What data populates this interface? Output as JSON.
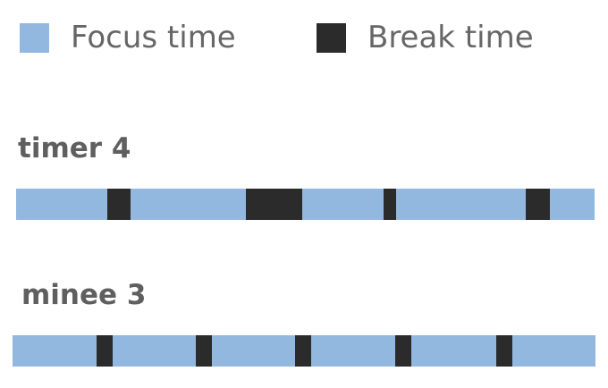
{
  "colors": {
    "focus": "#93b8e0",
    "break": "#2b2b2b"
  },
  "legend": {
    "focus_label": "Focus time",
    "break_label": "Break time"
  },
  "chart_data": {
    "type": "bar",
    "orientation": "horizontal-timeline",
    "legend_position": "top",
    "grid": false,
    "series": [
      {
        "name": "Focus time",
        "color": "#93b8e0"
      },
      {
        "name": "Break time",
        "color": "#2b2b2b"
      }
    ],
    "timers": [
      {
        "name": "timer 4",
        "segments": [
          {
            "type": "focus",
            "start": 0.0,
            "end": 0.158
          },
          {
            "type": "break",
            "start": 0.158,
            "end": 0.198
          },
          {
            "type": "focus",
            "start": 0.198,
            "end": 0.397
          },
          {
            "type": "break",
            "start": 0.397,
            "end": 0.495
          },
          {
            "type": "focus",
            "start": 0.495,
            "end": 0.635
          },
          {
            "type": "break",
            "start": 0.635,
            "end": 0.657
          },
          {
            "type": "focus",
            "start": 0.657,
            "end": 0.881
          },
          {
            "type": "break",
            "start": 0.881,
            "end": 0.923
          },
          {
            "type": "focus",
            "start": 0.923,
            "end": 1.0
          }
        ]
      },
      {
        "name": "minee 3",
        "segments": [
          {
            "type": "focus",
            "start": 0.0,
            "end": 0.144
          },
          {
            "type": "break",
            "start": 0.144,
            "end": 0.172
          },
          {
            "type": "focus",
            "start": 0.172,
            "end": 0.314
          },
          {
            "type": "break",
            "start": 0.314,
            "end": 0.342
          },
          {
            "type": "focus",
            "start": 0.342,
            "end": 0.485
          },
          {
            "type": "break",
            "start": 0.485,
            "end": 0.513
          },
          {
            "type": "focus",
            "start": 0.513,
            "end": 0.656
          },
          {
            "type": "break",
            "start": 0.656,
            "end": 0.684
          },
          {
            "type": "focus",
            "start": 0.684,
            "end": 0.829
          },
          {
            "type": "break",
            "start": 0.829,
            "end": 0.857
          },
          {
            "type": "focus",
            "start": 0.857,
            "end": 1.0
          }
        ]
      }
    ]
  }
}
